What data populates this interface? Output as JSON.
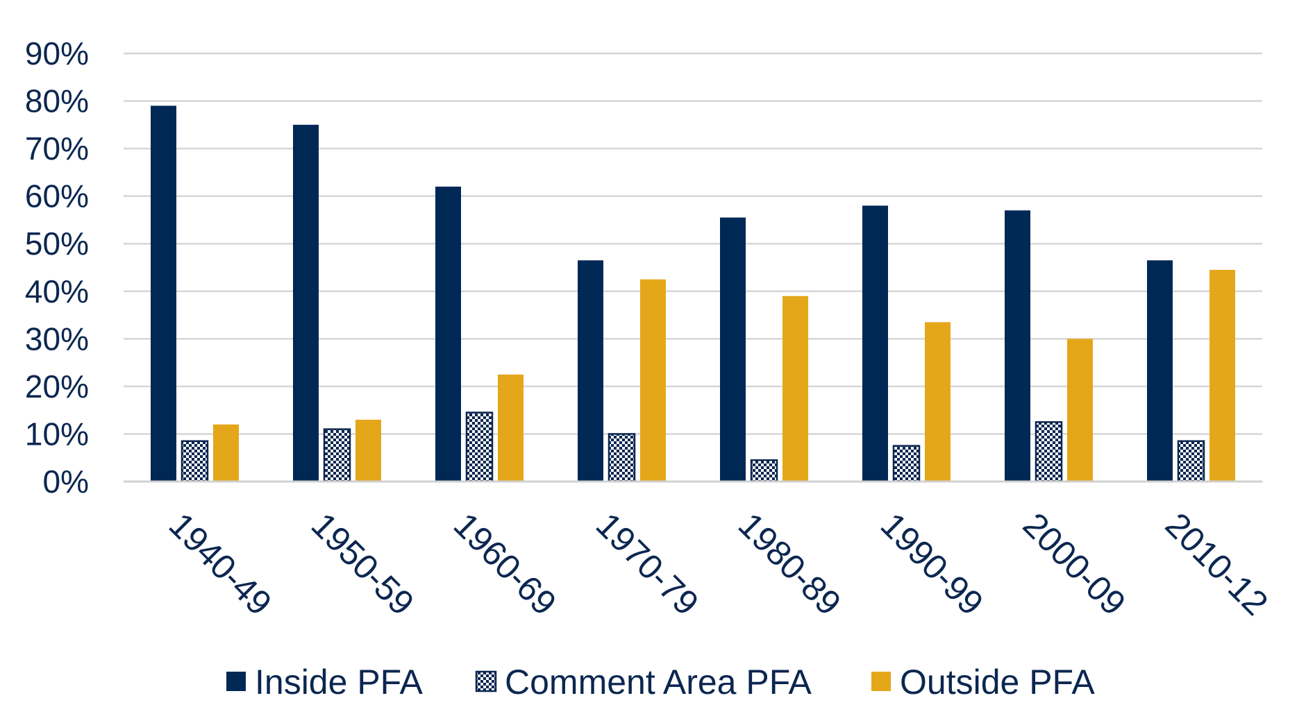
{
  "chart_data": {
    "type": "bar",
    "title": "",
    "xlabel": "",
    "ylabel": "",
    "ylim": [
      0,
      90
    ],
    "yticks": [
      0,
      10,
      20,
      30,
      40,
      50,
      60,
      70,
      80,
      90
    ],
    "ytick_labels": [
      "0%",
      "10%",
      "20%",
      "30%",
      "40%",
      "50%",
      "60%",
      "70%",
      "80%",
      "90%"
    ],
    "categories": [
      "1940-49",
      "1950-59",
      "1960-69",
      "1970-79",
      "1980-89",
      "1990-99",
      "2000-09",
      "2010-12"
    ],
    "series": [
      {
        "name": "Inside PFA",
        "color": "#002855",
        "pattern": "solid",
        "values": [
          79,
          75,
          62,
          46.5,
          55.5,
          58,
          57,
          46.5
        ]
      },
      {
        "name": "Comment Area PFA",
        "color": "#0b2650",
        "pattern": "checker",
        "values": [
          8.5,
          11,
          14.5,
          10,
          4.5,
          7.5,
          12.5,
          8.5
        ]
      },
      {
        "name": "Outside PFA",
        "color": "#e5a71a",
        "pattern": "solid",
        "values": [
          12,
          13,
          22.5,
          42.5,
          39,
          33.5,
          30,
          44.5
        ]
      }
    ],
    "grid": true,
    "legend_position": "bottom"
  }
}
